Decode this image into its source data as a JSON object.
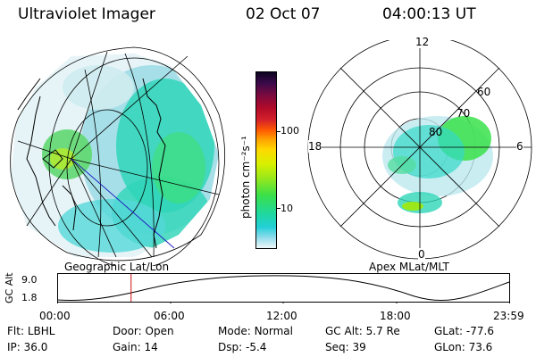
{
  "header": {
    "title": "Ultraviolet Imager",
    "date": "02 Oct 07",
    "time": "04:00:13 UT"
  },
  "left_panel": {
    "label": "Geographic Lat/Lon"
  },
  "right_panel": {
    "label": "Apex MLat/MLT",
    "mlt_labels": {
      "top": "12",
      "left": "18",
      "right": "6",
      "bottom": "0"
    },
    "lat_labels": [
      "60",
      "70",
      "80"
    ]
  },
  "colorbar": {
    "unit_label": "photon cm⁻²s⁻¹",
    "ticks": [
      "100",
      "10"
    ],
    "colors": [
      "#0c0420",
      "#3a0a4a",
      "#7a0a40",
      "#b00a2a",
      "#d4202a",
      "#ff5a00",
      "#ffa000",
      "#ffd800",
      "#d8f000",
      "#9ae81a",
      "#3ae04a",
      "#20d89a",
      "#22cfd8",
      "#90dcec",
      "#f0f8f8"
    ]
  },
  "altitude_strip": {
    "ylabel": "GC Alt",
    "yticks": [
      "9.0",
      "1.8"
    ],
    "xticks": [
      "00:00",
      "06:00",
      "12:00",
      "18:00",
      "23:59"
    ],
    "marker_time_hours": 3.9
  },
  "info": {
    "row1": [
      {
        "k": "Flt:",
        "v": "LBHL"
      },
      {
        "k": "Door:",
        "v": "Open"
      },
      {
        "k": "Mode:",
        "v": "Normal"
      },
      {
        "k": "GC Alt:",
        "v": "5.7 Re"
      },
      {
        "k": "GLat:",
        "v": "-77.6"
      }
    ],
    "row2": [
      {
        "k": "IP:",
        "v": "36.0"
      },
      {
        "k": "Gain:",
        "v": "14"
      },
      {
        "k": "Dsp:",
        "v": "-5.4"
      },
      {
        "k": "Seq:",
        "v": "39"
      },
      {
        "k": "GLon:",
        "v": "73.6"
      }
    ]
  }
}
